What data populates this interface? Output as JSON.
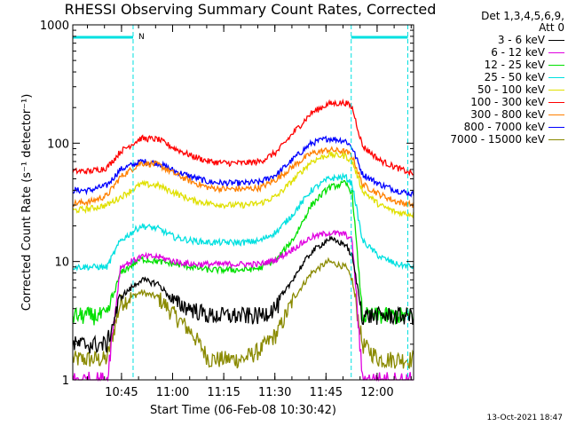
{
  "chart_data": {
    "type": "line",
    "title": "RHESSI Observing Summary Count Rates, Corrected",
    "xlabel": "Start Time (06-Feb-08 10:30:42)",
    "ylabel": "Corrected Count Rate (s⁻¹ detector⁻¹)",
    "yscale": "log",
    "ylim": [
      1,
      1000
    ],
    "xlim_minutes": [
      0,
      100
    ],
    "x_ticks": [
      {
        "minute": 14.3,
        "label": "10:45"
      },
      {
        "minute": 29.3,
        "label": "11:00"
      },
      {
        "minute": 44.3,
        "label": "11:15"
      },
      {
        "minute": 59.3,
        "label": "11:30"
      },
      {
        "minute": 74.3,
        "label": "11:45"
      },
      {
        "minute": 89.3,
        "label": "12:00"
      }
    ],
    "y_ticks": [
      {
        "value": 1,
        "label": "1"
      },
      {
        "value": 10,
        "label": "10"
      },
      {
        "value": 100,
        "label": "100"
      },
      {
        "value": 1000,
        "label": "1000"
      }
    ],
    "night_markers_minutes": [
      17.7,
      81.7,
      98.3
    ],
    "night_flag_minutes": [
      [
        0,
        17.7
      ],
      [
        81.7,
        98.3
      ]
    ],
    "night_flag_label": "N",
    "x_samples_minutes": [
      0,
      5,
      10,
      14,
      20,
      25,
      30,
      35,
      40,
      45,
      50,
      55,
      60,
      65,
      70,
      75,
      80,
      82,
      85,
      90,
      95,
      100
    ],
    "series": [
      {
        "name": "3 - 6 keV",
        "color": "#000000",
        "values": [
          2,
          2,
          2,
          5,
          7,
          6.5,
          4.5,
          4,
          3.5,
          3.5,
          3.5,
          3.5,
          4.2,
          7.5,
          12,
          15.5,
          14,
          11,
          3.5,
          3.5,
          3.5,
          3.5
        ]
      },
      {
        "name": "6 - 12 keV",
        "color": "#e000e0",
        "values": [
          1,
          1,
          1,
          9,
          11,
          11,
          10,
          9.5,
          9.5,
          9.5,
          9.5,
          9.5,
          10.5,
          13,
          16,
          17.5,
          17,
          15,
          1,
          1,
          1,
          1
        ]
      },
      {
        "name": "12 - 25 keV",
        "color": "#00e000",
        "values": [
          3.5,
          3.5,
          3.5,
          8,
          10.5,
          10,
          9.5,
          9,
          8.5,
          8.5,
          8.5,
          8.8,
          10.5,
          16,
          30,
          42,
          46,
          38,
          3.5,
          3.5,
          3.5,
          3.5
        ]
      },
      {
        "name": "25 - 50 keV",
        "color": "#00e0e0",
        "values": [
          9,
          9,
          9,
          15,
          20,
          19,
          16,
          15,
          14.5,
          14.5,
          14.5,
          15,
          18,
          26,
          40,
          50,
          52,
          45,
          15,
          11,
          9.5,
          9
        ]
      },
      {
        "name": "50 - 100 keV",
        "color": "#e0e000",
        "values": [
          27,
          28,
          30,
          35,
          45,
          44,
          38,
          33,
          31,
          30,
          30,
          31,
          36,
          50,
          70,
          80,
          78,
          70,
          40,
          30,
          26,
          25
        ]
      },
      {
        "name": "100 - 300 keV",
        "color": "#ff0000",
        "values": [
          58,
          58,
          62,
          85,
          110,
          108,
          90,
          78,
          70,
          68,
          68,
          70,
          85,
          125,
          180,
          215,
          220,
          200,
          95,
          72,
          62,
          55
        ]
      },
      {
        "name": "300 - 800 keV",
        "color": "#ff8000",
        "values": [
          31,
          32,
          36,
          52,
          68,
          66,
          55,
          47,
          42,
          41,
          41,
          42,
          50,
          65,
          82,
          88,
          85,
          78,
          45,
          37,
          32,
          30
        ]
      },
      {
        "name": "800 - 7000 keV",
        "color": "#0000ff",
        "values": [
          40,
          40,
          44,
          60,
          70,
          68,
          58,
          52,
          47,
          46,
          46,
          47,
          55,
          75,
          100,
          110,
          105,
          92,
          55,
          45,
          40,
          37
        ]
      },
      {
        "name": "7000 - 15000 keV",
        "color": "#8a8a00",
        "values": [
          1.5,
          1.5,
          1.5,
          4.5,
          5.5,
          5,
          3.5,
          2.5,
          1.5,
          1.5,
          1.5,
          1.8,
          2.5,
          5,
          8,
          10,
          9,
          7,
          2,
          1.5,
          1.5,
          1.5
        ]
      }
    ]
  },
  "legend": {
    "header_line1": "Det 1,3,4,5,6,9,",
    "header_line2": "Att 0"
  },
  "footer": {
    "timestamp": "13-Oct-2021 18:47"
  }
}
